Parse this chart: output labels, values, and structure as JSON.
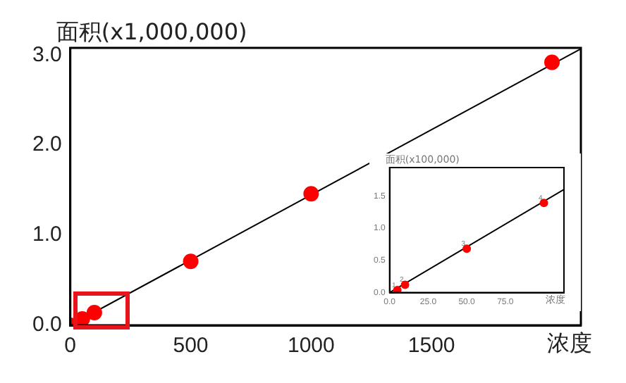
{
  "chart_data": [
    {
      "type": "scatter",
      "ylabel": "面积(x1,000,000)",
      "xlabel": "浓度",
      "x": [
        0,
        50,
        100,
        500,
        1000,
        2000
      ],
      "xlim": [
        0,
        2120
      ],
      "ylim": [
        0,
        3.08
      ],
      "xticks": [
        0,
        500,
        1000,
        1500
      ],
      "yticks": [
        {
          "value": 0,
          "label": "0.0"
        },
        {
          "value": 1,
          "label": "1.0"
        },
        {
          "value": 2,
          "label": "2.0"
        },
        {
          "value": 3,
          "label": "3.0"
        }
      ],
      "grid": false,
      "legend": false,
      "marker": "circle",
      "series": [
        {
          "color": "#ff0000",
          "values": [
            0,
            0.07,
            0.14,
            0.71,
            1.46,
            2.92
          ]
        },
        {
          "type": "line",
          "color": "#000000",
          "marker": "none",
          "x": [
            0,
            2120
          ],
          "values": [
            0,
            3.07
          ]
        }
      ]
    },
    {
      "type": "scatter",
      "ylabel": "面积(x100,000)",
      "xlabel": "浓度",
      "x": [
        5,
        10,
        50,
        100
      ],
      "xlim": [
        0,
        113
      ],
      "ylim": [
        0,
        1.94
      ],
      "xticks": [
        {
          "value": 0,
          "label": "0.0"
        },
        {
          "value": 25,
          "label": "25.0"
        },
        {
          "value": 50,
          "label": "50.0"
        },
        {
          "value": 75,
          "label": "75.0"
        }
      ],
      "yticks": [
        {
          "value": 0,
          "label": "0.0"
        },
        {
          "value": 0.5,
          "label": "0.5"
        },
        {
          "value": 1,
          "label": "1.0"
        },
        {
          "value": 1.5,
          "label": "1.5"
        }
      ],
      "grid": false,
      "legend": false,
      "marker": "circle",
      "series": [
        {
          "color": "#ff0000",
          "values": [
            0.04,
            0.12,
            0.68,
            1.39
          ]
        },
        {
          "type": "line",
          "color": "#000000",
          "marker": "none",
          "x": [
            0,
            113
          ],
          "values": [
            0,
            1.6
          ]
        }
      ],
      "annotations": [
        {
          "text": "1",
          "x": 5,
          "y": 0.04
        },
        {
          "text": "2",
          "x": 10,
          "y": 0.12
        },
        {
          "text": "3",
          "x": 50,
          "y": 0.68
        },
        {
          "text": "4",
          "x": 100,
          "y": 1.39
        }
      ]
    }
  ]
}
